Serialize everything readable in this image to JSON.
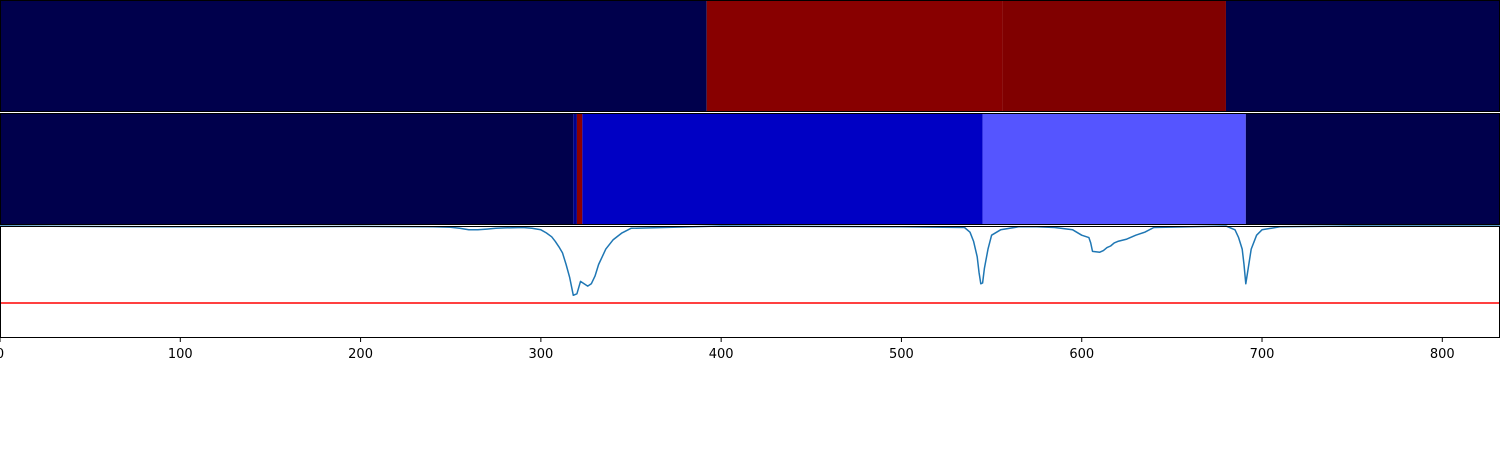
{
  "chart_data": [
    {
      "type": "heatmap",
      "panel": "top",
      "colormap": "seismic",
      "xlim": [
        0,
        832
      ],
      "segments": [
        {
          "x_start": 0,
          "x_end": 392,
          "color": "#00004c"
        },
        {
          "x_start": 392,
          "x_end": 556,
          "color": "#880000"
        },
        {
          "x_start": 556,
          "x_end": 680,
          "color": "#800000"
        },
        {
          "x_start": 680,
          "x_end": 832,
          "color": "#00004c"
        }
      ]
    },
    {
      "type": "heatmap",
      "panel": "middle",
      "colormap": "seismic",
      "xlim": [
        0,
        832
      ],
      "segments": [
        {
          "x_start": 0,
          "x_end": 318,
          "color": "#00004c"
        },
        {
          "x_start": 318,
          "x_end": 320,
          "color": "#00008c"
        },
        {
          "x_start": 320,
          "x_end": 323,
          "color": "#8c0000"
        },
        {
          "x_start": 323,
          "x_end": 545,
          "color": "#0000c4"
        },
        {
          "x_start": 545,
          "x_end": 691,
          "color": "#5555ff"
        },
        {
          "x_start": 691,
          "x_end": 832,
          "color": "#00004c"
        }
      ]
    },
    {
      "type": "line",
      "panel": "bottom",
      "xlim": [
        0,
        832
      ],
      "ylim": [
        -1.0,
        0.0
      ],
      "grid": false,
      "x_ticks": [
        0,
        100,
        200,
        300,
        400,
        500,
        600,
        700,
        800
      ],
      "series": [
        {
          "color": "#1f77b4",
          "x": [
            0,
            95,
            150,
            200,
            240,
            250,
            255,
            260,
            265,
            270,
            275,
            280,
            290,
            295,
            300,
            303,
            306,
            308,
            310,
            312,
            314,
            316,
            318,
            320,
            322,
            324,
            326,
            328,
            330,
            332,
            334,
            336,
            340,
            345,
            350,
            400,
            500,
            535,
            538,
            540,
            542,
            543,
            544,
            545,
            546,
            548,
            550,
            555,
            565,
            575,
            585,
            595,
            600,
            604,
            605,
            606,
            610,
            612,
            614,
            616,
            618,
            620,
            625,
            630,
            635,
            640,
            680,
            685,
            687,
            689,
            690,
            691,
            692,
            694,
            697,
            700,
            710,
            750,
            800,
            832
          ],
          "y": [
            0.0,
            -0.01,
            -0.01,
            -0.005,
            -0.01,
            -0.015,
            -0.03,
            -0.05,
            -0.05,
            -0.04,
            -0.03,
            -0.025,
            -0.02,
            -0.03,
            -0.05,
            -0.09,
            -0.14,
            -0.2,
            -0.27,
            -0.35,
            -0.5,
            -0.67,
            -0.9,
            -0.88,
            -0.72,
            -0.75,
            -0.78,
            -0.75,
            -0.65,
            -0.5,
            -0.4,
            -0.3,
            -0.18,
            -0.09,
            -0.03,
            0.0,
            -0.01,
            -0.02,
            -0.08,
            -0.2,
            -0.4,
            -0.6,
            -0.75,
            -0.74,
            -0.55,
            -0.3,
            -0.12,
            -0.05,
            -0.01,
            -0.01,
            -0.02,
            -0.05,
            -0.12,
            -0.15,
            -0.22,
            -0.33,
            -0.34,
            -0.32,
            -0.28,
            -0.26,
            -0.22,
            -0.2,
            -0.17,
            -0.12,
            -0.08,
            -0.02,
            0.0,
            -0.05,
            -0.15,
            -0.3,
            -0.5,
            -0.75,
            -0.6,
            -0.3,
            -0.12,
            -0.05,
            -0.01,
            0.0,
            0.0,
            0.0
          ]
        }
      ],
      "threshold": {
        "y": -1.0,
        "color": "#ff0000"
      }
    }
  ]
}
